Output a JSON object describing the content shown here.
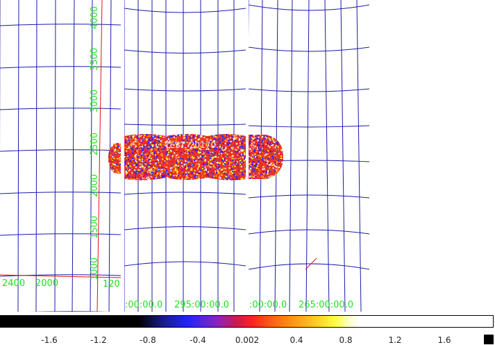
{
  "panels": [
    {
      "name": "panel-left",
      "y_tick_labels": [
        "4000",
        "3500",
        "3000",
        "2500",
        "2000",
        "1500",
        "1000"
      ],
      "x_tick_labels": [
        "2400",
        "2000",
        "120"
      ],
      "colors": {
        "grid": "#1a1aa8",
        "axis": "#dd1111"
      }
    },
    {
      "name": "panel-middle",
      "x_tick_labels": [
        ":00:00.0",
        "295:00:00.0"
      ],
      "overlay_text": "TEST_20170..."
    },
    {
      "name": "panel-right",
      "x_tick_labels": [
        ":00:00.0",
        "265:00:00.0"
      ]
    }
  ],
  "colorbar": {
    "tick_labels": [
      "-1.6",
      "-1.2",
      "-0.8",
      "-0.4",
      "0.002",
      "0.4",
      "0.8",
      "1.2",
      "1.6"
    ],
    "colors": [
      "#000000",
      "#000000",
      "#2222ff",
      "#c01870",
      "#ff2020",
      "#ff9900",
      "#ffff30",
      "#ffffff"
    ]
  },
  "colors": {
    "label": "#22dd22",
    "grid": "#1a1aa8",
    "background": "#ffffff"
  }
}
